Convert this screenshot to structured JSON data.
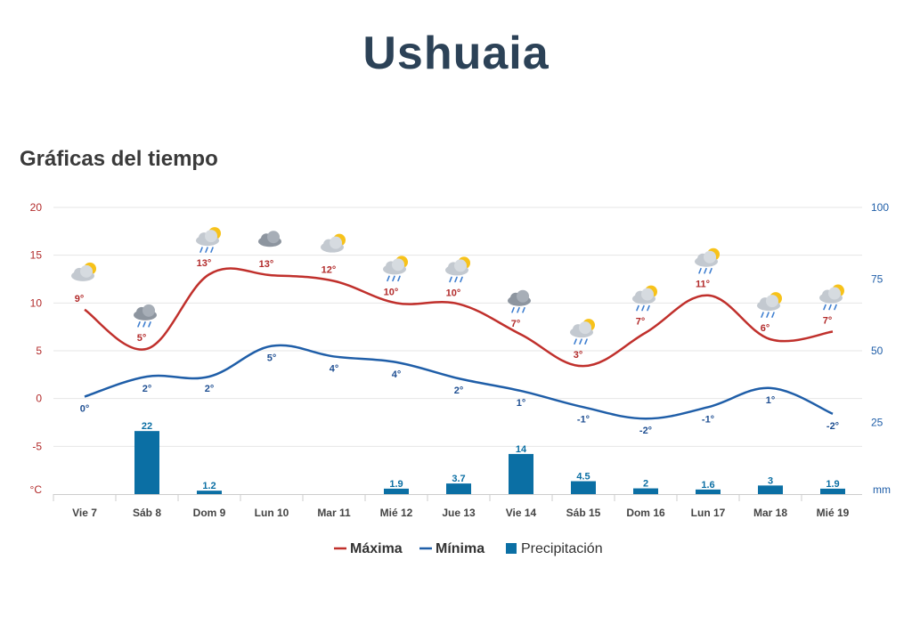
{
  "page": {
    "title": "Ushuaia",
    "section_title": "Gráficas del tiempo"
  },
  "colors": {
    "max": "#c0302c",
    "min": "#1f5ea8",
    "precip": "#0b6fa4",
    "grid": "#e6e6e6",
    "title": "#2c4257"
  },
  "chart_data": {
    "type": "line",
    "categories": [
      "Vie 7",
      "Sáb 8",
      "Dom 9",
      "Lun 10",
      "Mar 11",
      "Mié 12",
      "Jue 13",
      "Vie 14",
      "Sáb 15",
      "Dom 16",
      "Lun 17",
      "Mar 18",
      "Mié 19"
    ],
    "series": [
      {
        "name": "Máxima",
        "type": "line",
        "axis": "left",
        "values": [
          9.3,
          5.2,
          13.0,
          12.9,
          12.3,
          10.0,
          9.9,
          6.7,
          3.4,
          6.9,
          10.8,
          6.2,
          7.0
        ],
        "labels": [
          "9°",
          "5°",
          "13°",
          "13°",
          "12°",
          "10°",
          "10°",
          "7°",
          "3°",
          "7°",
          "11°",
          "6°",
          "7°"
        ]
      },
      {
        "name": "Mínima",
        "type": "line",
        "axis": "left",
        "values": [
          0.2,
          2.3,
          2.3,
          5.5,
          4.4,
          3.8,
          2.1,
          0.8,
          -0.9,
          -2.1,
          -0.9,
          1.1,
          -1.6
        ],
        "labels": [
          "0°",
          "2°",
          "2°",
          "5°",
          "4°",
          "4°",
          "2°",
          "1°",
          "-1°",
          "-2°",
          "-1°",
          "1°",
          "-2°"
        ]
      },
      {
        "name": "Precipitación",
        "type": "bar",
        "axis": "right",
        "values": [
          0,
          22,
          1.2,
          0,
          0,
          1.9,
          3.7,
          14,
          4.5,
          2,
          1.6,
          3,
          1.9
        ],
        "labels": [
          "",
          "22",
          "1.2",
          "",
          "",
          "1.9",
          "3.7",
          "14",
          "4.5",
          "2",
          "1.6",
          "3",
          "1.9"
        ]
      }
    ],
    "icons": [
      "partly-cloudy-icon",
      "cloud-rain-icon",
      "sun-cloud-rain-icon",
      "cloudy-icon",
      "partly-cloudy-icon",
      "sun-cloud-rain-icon",
      "sun-cloud-rain-icon",
      "cloud-rain-icon",
      "sun-cloud-rain-icon",
      "sun-cloud-rain-icon",
      "sun-cloud-rain-icon",
      "sun-cloud-rain-icon",
      "sun-cloud-rain-icon"
    ],
    "y_left": {
      "unit": "°C",
      "min": -10,
      "max": 20,
      "ticks": [
        "20",
        "15",
        "10",
        "5",
        "0",
        "-5"
      ]
    },
    "y_right": {
      "unit": "mm",
      "min": 0,
      "max": 100,
      "ticks": [
        "100",
        "75",
        "50",
        "25"
      ]
    },
    "grid": true,
    "legend": {
      "position": "bottom",
      "items": [
        {
          "label": "Máxima",
          "kind": "line",
          "color": "#c0302c"
        },
        {
          "label": "Mínima",
          "kind": "line",
          "color": "#1f5ea8"
        },
        {
          "label": "Precipitación",
          "kind": "bar",
          "color": "#0b6fa4"
        }
      ]
    }
  }
}
